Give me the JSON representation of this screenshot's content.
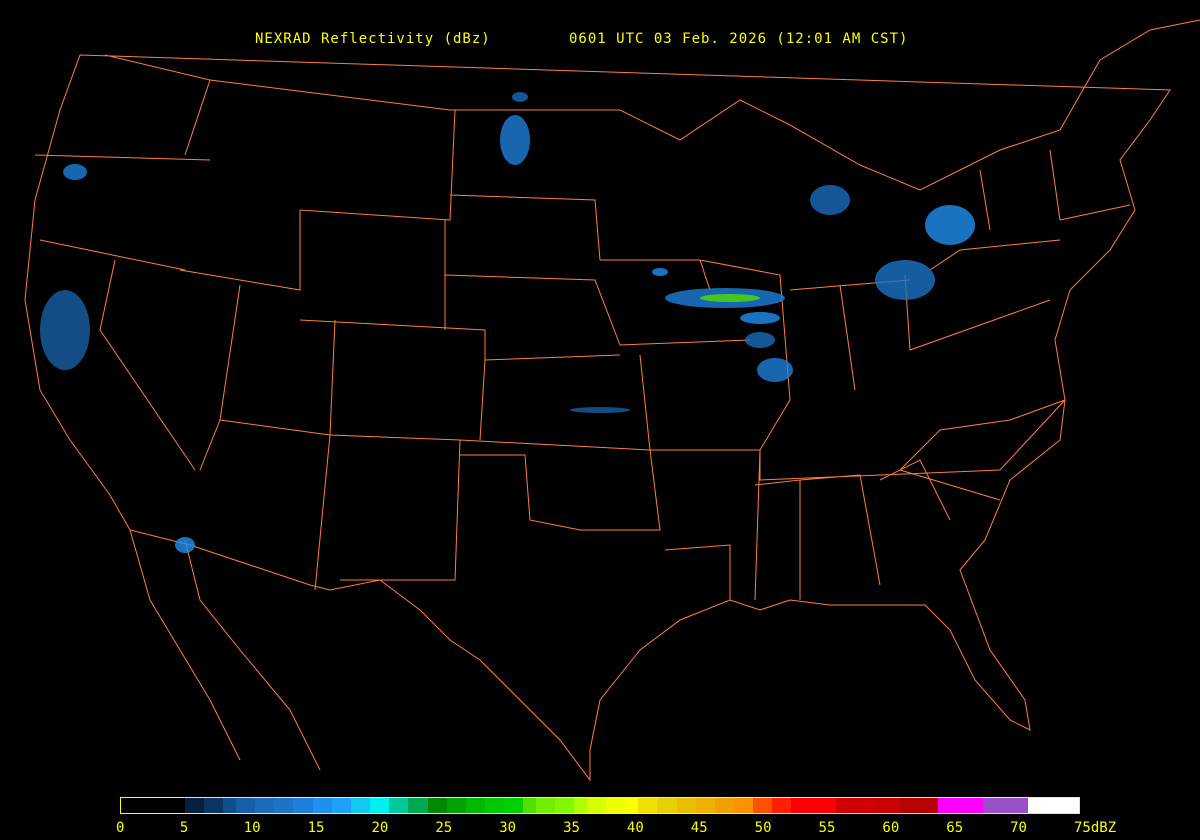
{
  "title": "NEXRAD Reflectivity (dBz)",
  "timestamp": "0601 UTC 03 Feb. 2026 (12:01 AM CST)",
  "colors": {
    "background": "#000000",
    "borders": "#ff7f3f",
    "text": "#ffff00"
  },
  "legend": {
    "unit": "dBZ",
    "min": 0,
    "max": 75,
    "tick_labels": [
      "0",
      "5",
      "10",
      "15",
      "20",
      "25",
      "30",
      "35",
      "40",
      "45",
      "50",
      "55",
      "60",
      "65",
      "70",
      "75dBZ"
    ],
    "scale": [
      {
        "from": 0,
        "color": "#000000"
      },
      {
        "from": 5,
        "color": "#08203f"
      },
      {
        "from": 6.5,
        "color": "#0c3563"
      },
      {
        "from": 8,
        "color": "#104f8c"
      },
      {
        "from": 9,
        "color": "#1660a8"
      },
      {
        "from": 10.5,
        "color": "#1a6cbc"
      },
      {
        "from": 12,
        "color": "#1c74c8"
      },
      {
        "from": 13.5,
        "color": "#1e80dc"
      },
      {
        "from": 15,
        "color": "#2090f0"
      },
      {
        "from": 16.5,
        "color": "#20a0f8"
      },
      {
        "from": 18,
        "color": "#10c8f0"
      },
      {
        "from": 19.5,
        "color": "#00f0f0"
      },
      {
        "from": 21,
        "color": "#00c898"
      },
      {
        "from": 22.5,
        "color": "#00a850"
      },
      {
        "from": 24,
        "color": "#008800"
      },
      {
        "from": 25.5,
        "color": "#00a000"
      },
      {
        "from": 27,
        "color": "#00b800"
      },
      {
        "from": 28.5,
        "color": "#00c800"
      },
      {
        "from": 30,
        "color": "#00d000"
      },
      {
        "from": 31.5,
        "color": "#50e000"
      },
      {
        "from": 32.5,
        "color": "#70f000"
      },
      {
        "from": 34,
        "color": "#80f800"
      },
      {
        "from": 35.5,
        "color": "#b0ff00"
      },
      {
        "from": 36.5,
        "color": "#d8ff00"
      },
      {
        "from": 38,
        "color": "#f0ff00"
      },
      {
        "from": 39.5,
        "color": "#ffff00"
      },
      {
        "from": 40.5,
        "color": "#f0e000"
      },
      {
        "from": 42,
        "color": "#e8d000"
      },
      {
        "from": 43.5,
        "color": "#e8c000"
      },
      {
        "from": 45,
        "color": "#f0b000"
      },
      {
        "from": 46.5,
        "color": "#f0a000"
      },
      {
        "from": 48,
        "color": "#ff9000"
      },
      {
        "from": 49.5,
        "color": "#ff5000"
      },
      {
        "from": 51,
        "color": "#ff2000"
      },
      {
        "from": 52.5,
        "color": "#ff0000"
      },
      {
        "from": 56,
        "color": "#d00000"
      },
      {
        "from": 59,
        "color": "#c80000"
      },
      {
        "from": 61,
        "color": "#b80000"
      },
      {
        "from": 64,
        "color": "#ff00ff"
      },
      {
        "from": 67.5,
        "color": "#9c50c8"
      },
      {
        "from": 71,
        "color": "#ffffff"
      }
    ]
  }
}
